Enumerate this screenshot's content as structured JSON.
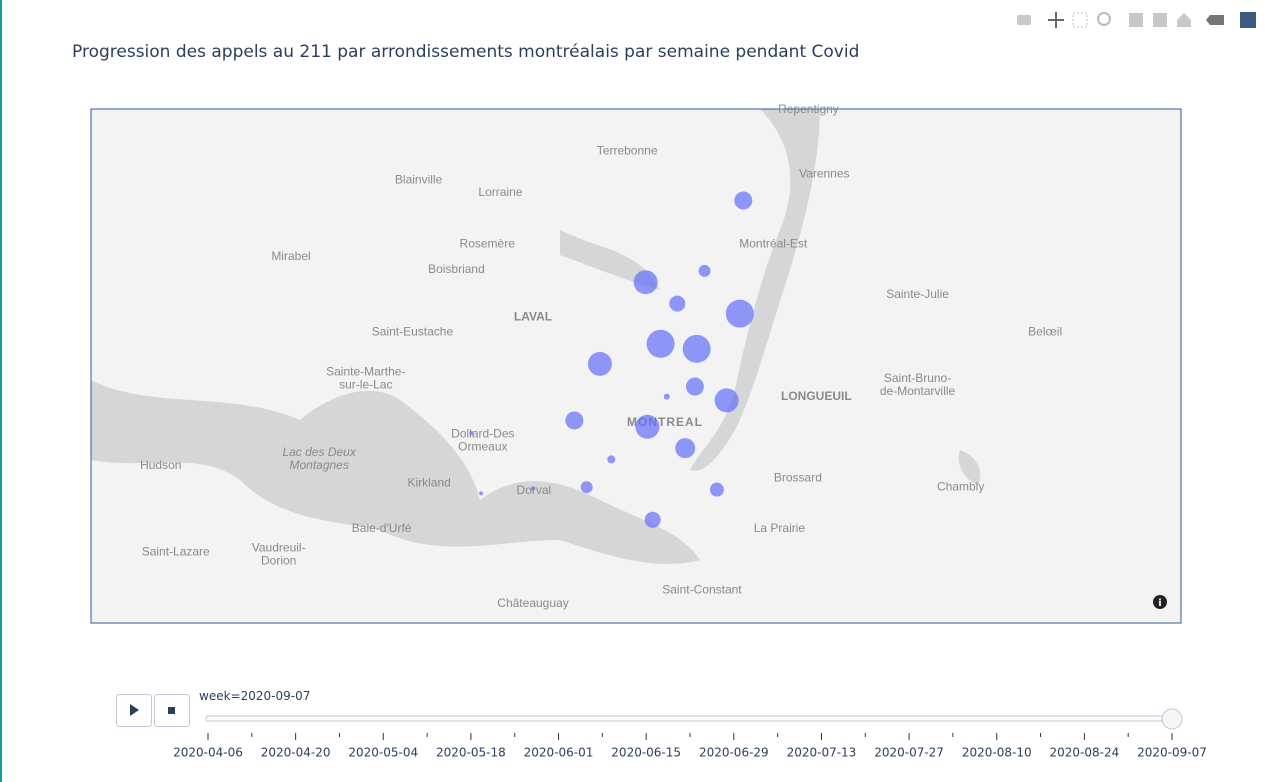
{
  "chart_data": {
    "type": "scatter_map",
    "title": "Progression des appels au 211 par arrondissements montréalais par semaine pendant Covid",
    "color": "#636efa",
    "lat": [
      45.677,
      45.621,
      45.612,
      45.595,
      45.587,
      45.563,
      45.559,
      45.547,
      45.529,
      45.521,
      45.518,
      45.502,
      45.497,
      45.48,
      45.471,
      45.449,
      45.447,
      45.423,
      45.444,
      45.448,
      45.492
    ],
    "lon": [
      -73.481,
      -73.525,
      -73.592,
      -73.556,
      -73.485,
      -73.575,
      -73.534,
      -73.644,
      -73.536,
      -73.568,
      -73.5,
      -73.673,
      -73.59,
      -73.547,
      -73.631,
      -73.659,
      -73.511,
      -73.584,
      -73.779,
      -73.72,
      -73.79
    ],
    "values": [
      165,
      73,
      294,
      131,
      400,
      400,
      400,
      294,
      165,
      18,
      294,
      165,
      294,
      204,
      33,
      73,
      100,
      131,
      8,
      8,
      8
    ],
    "places": [
      {
        "lines": [
          "Repentigny"
        ],
        "lat": 45.749,
        "lon": -73.407
      },
      {
        "lines": [
          "Terrebonne"
        ],
        "lat": 45.716,
        "lon": -73.613
      },
      {
        "lines": [
          "Varennes"
        ],
        "lat": 45.698,
        "lon": -73.389
      },
      {
        "lines": [
          "Blainville"
        ],
        "lat": 45.693,
        "lon": -73.85
      },
      {
        "lines": [
          "Lorraine"
        ],
        "lat": 45.683,
        "lon": -73.757
      },
      {
        "lines": [
          "Montréal-Est"
        ],
        "lat": 45.642,
        "lon": -73.447
      },
      {
        "lines": [
          "Rosemère"
        ],
        "lat": 45.642,
        "lon": -73.772
      },
      {
        "lines": [
          "Mirabel"
        ],
        "lat": 45.632,
        "lon": -73.995
      },
      {
        "lines": [
          "Boisbriand"
        ],
        "lat": 45.622,
        "lon": -73.807
      },
      {
        "lines": [
          "Sainte-Julie"
        ],
        "lat": 45.602,
        "lon": -73.283
      },
      {
        "lines": [
          "LAVAL"
        ],
        "lat": 45.584,
        "lon": -73.72,
        "major": true
      },
      {
        "lines": [
          "Saint-Eustache"
        ],
        "lat": 45.572,
        "lon": -73.857
      },
      {
        "lines": [
          "Belœil"
        ],
        "lat": 45.572,
        "lon": -73.138
      },
      {
        "lines": [
          "Sainte-Marthe-",
          "sur-le-Lac"
        ],
        "lat": 45.535,
        "lon": -73.91
      },
      {
        "lines": [
          "Saint-Bruno-",
          "de-Montarville"
        ],
        "lat": 45.53,
        "lon": -73.283
      },
      {
        "lines": [
          "LONGUEUIL"
        ],
        "lat": 45.521,
        "lon": -73.398,
        "major": true
      },
      {
        "lines": [
          "MONTREAL"
        ],
        "lat": 45.5,
        "lon": -73.57,
        "capital": true
      },
      {
        "lines": [
          "Dollard-Des",
          "Ormeaux"
        ],
        "lat": 45.486,
        "lon": -73.777
      },
      {
        "lines": [
          "Lac des Deux",
          "Montagnes"
        ],
        "lat": 45.471,
        "lon": -73.963,
        "water": true
      },
      {
        "lines": [
          "Hudson"
        ],
        "lat": 45.466,
        "lon": -74.143
      },
      {
        "lines": [
          "Brossard"
        ],
        "lat": 45.456,
        "lon": -73.419
      },
      {
        "lines": [
          "Kirkland"
        ],
        "lat": 45.452,
        "lon": -73.838
      },
      {
        "lines": [
          "Chambly"
        ],
        "lat": 45.449,
        "lon": -73.234
      },
      {
        "lines": [
          "Dorval"
        ],
        "lat": 45.446,
        "lon": -73.719
      },
      {
        "lines": [
          "Baie-d'Urfé"
        ],
        "lat": 45.416,
        "lon": -73.892
      },
      {
        "lines": [
          "La Prairie"
        ],
        "lat": 45.416,
        "lon": -73.44
      },
      {
        "lines": [
          "Saint-Lazare"
        ],
        "lat": 45.397,
        "lon": -74.126
      },
      {
        "lines": [
          "Vaudreuil-",
          "Dorion"
        ],
        "lat": 45.395,
        "lon": -74.009
      },
      {
        "lines": [
          "Saint-Constant"
        ],
        "lat": 45.367,
        "lon": -73.528
      },
      {
        "lines": [
          "Châteauguay"
        ],
        "lat": 45.356,
        "lon": -73.72
      }
    ],
    "slider": {
      "prefix": "week=",
      "current": "2020-09-07",
      "active": 22,
      "steps": [
        "2020-04-06",
        null,
        "2020-04-20",
        null,
        "2020-05-04",
        null,
        "2020-05-18",
        null,
        "2020-06-01",
        null,
        "2020-06-15",
        null,
        "2020-06-29",
        null,
        "2020-07-13",
        null,
        "2020-07-27",
        null,
        "2020-08-10",
        null,
        "2020-08-24",
        null,
        "2020-09-07"
      ]
    }
  }
}
